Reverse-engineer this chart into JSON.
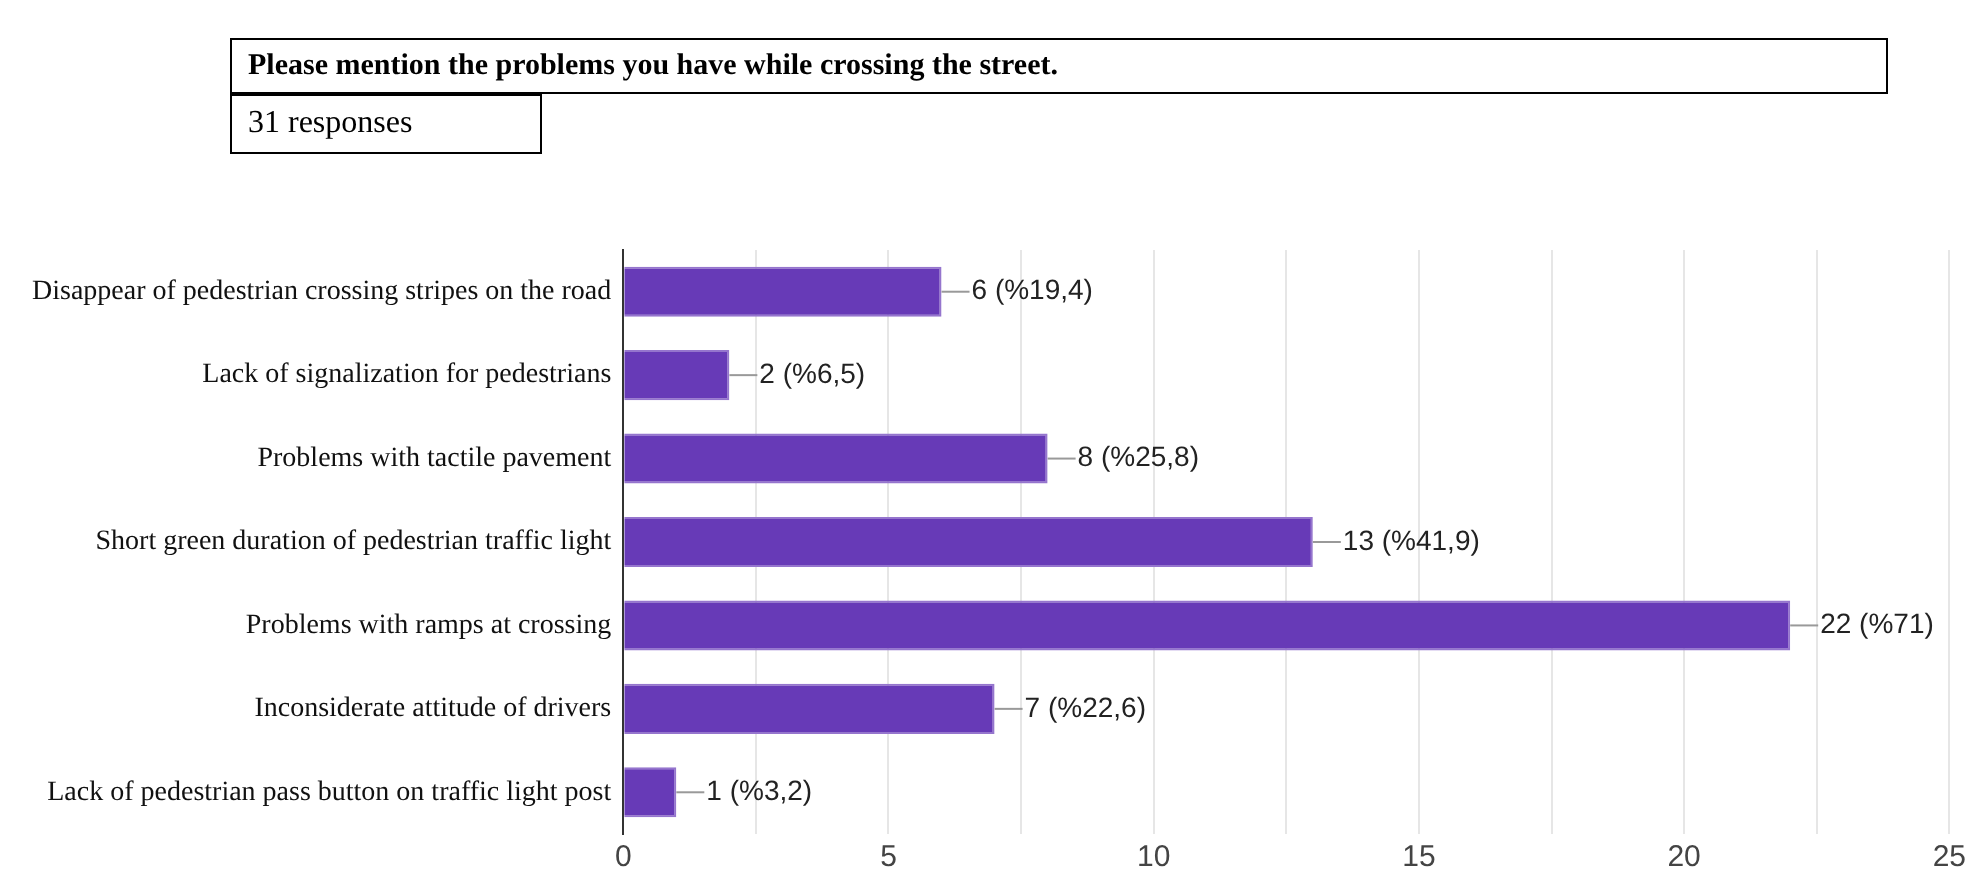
{
  "chart_data": {
    "type": "bar",
    "orientation": "horizontal",
    "title": "Please mention the problems you have while crossing the street.",
    "subtitle": "31 responses",
    "categories": [
      "Disappear of pedestrian crossing stripes on the road",
      "Lack of signalization for pedestrians",
      "Problems with tactile pavement",
      "Short green duration of pedestrian traffic light",
      "Problems with ramps at crossing",
      "Inconsiderate attitude of drivers",
      "Lack of pedestrian pass button on traffic light post"
    ],
    "values": [
      6,
      2,
      8,
      13,
      22,
      7,
      1
    ],
    "value_labels": [
      "6 (%19,4)",
      "2 (%6,5)",
      "8 (%25,8)",
      "13 (%41,9)",
      "22 (%71)",
      "7 (%22,6)",
      "1 (%3,2)"
    ],
    "color": "#673ab7",
    "xlim": [
      0,
      25
    ],
    "xticks": [
      0,
      {
        "value": 2.5,
        "label": null
      },
      5,
      {
        "value": 7.5,
        "label": null
      },
      10,
      {
        "value": 12.5,
        "label": null
      },
      15,
      {
        "value": 17.5,
        "label": null
      },
      20,
      {
        "value": 22.5,
        "label": null
      },
      25
    ],
    "grid": "x",
    "legend": false
  }
}
